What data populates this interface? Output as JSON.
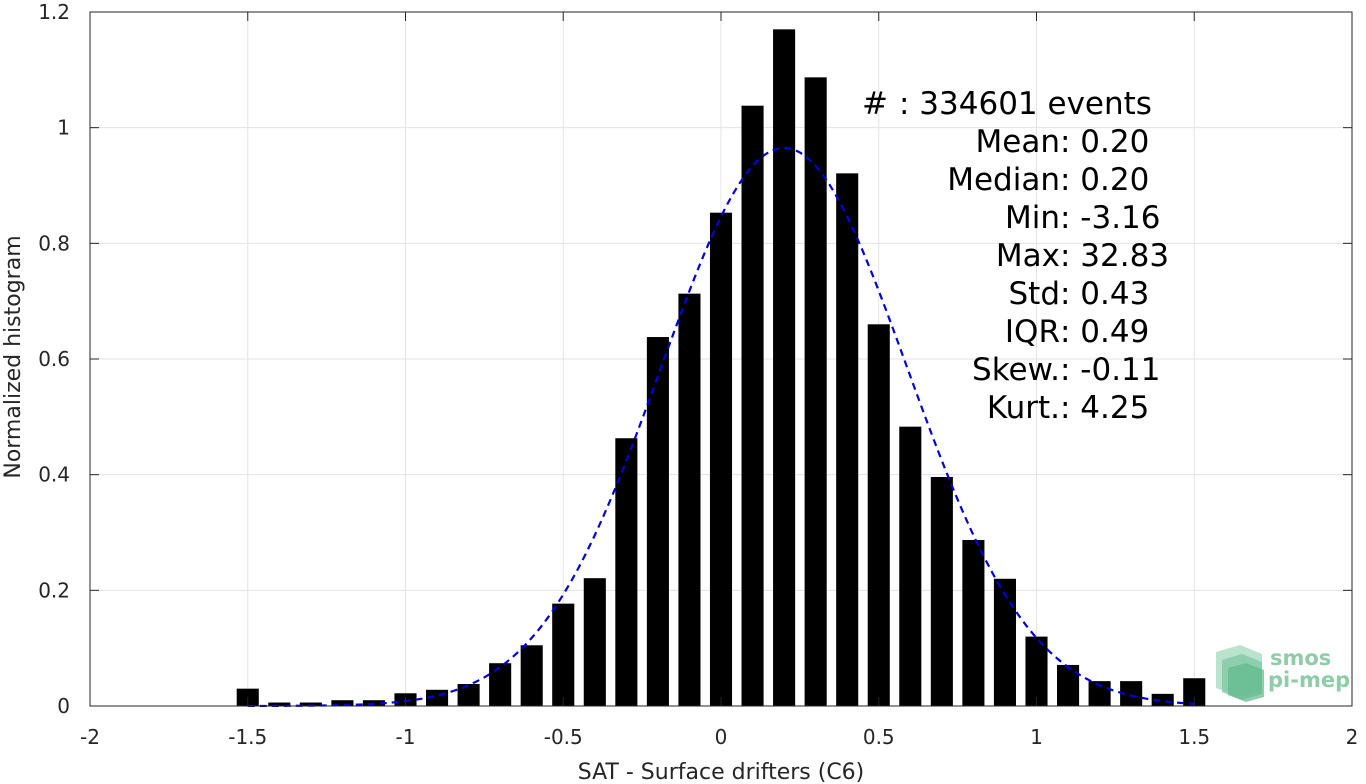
{
  "chart_data": {
    "type": "bar",
    "xlabel": "SAT - Surface drifters (C6)",
    "ylabel": "Normalized histogram",
    "xlim": [
      -2,
      2
    ],
    "ylim": [
      0,
      1.2
    ],
    "xticks": [
      -2,
      -1.5,
      -1,
      -0.5,
      0,
      0.5,
      1,
      1.5,
      2
    ],
    "xtick_labels": [
      "-2",
      "-1.5",
      "-1",
      "-0.5",
      "0",
      "0.5",
      "1",
      "1.5",
      "2"
    ],
    "yticks": [
      0,
      0.2,
      0.4,
      0.6,
      0.8,
      1,
      1.2
    ],
    "ytick_labels": [
      "0",
      "0.2",
      "0.4",
      "0.6",
      "0.8",
      "1",
      "1.2"
    ],
    "grid": true,
    "bar_width": 0.07,
    "bar_color": "#000000",
    "fit_color": "#0000dd",
    "bars": [
      {
        "x": -1.5,
        "y": 0.03
      },
      {
        "x": -1.4,
        "y": 0.006
      },
      {
        "x": -1.3,
        "y": 0.006
      },
      {
        "x": -1.2,
        "y": 0.01
      },
      {
        "x": -1.1,
        "y": 0.01
      },
      {
        "x": -1.0,
        "y": 0.022
      },
      {
        "x": -0.9,
        "y": 0.028
      },
      {
        "x": -0.8,
        "y": 0.038
      },
      {
        "x": -0.7,
        "y": 0.074
      },
      {
        "x": -0.6,
        "y": 0.105
      },
      {
        "x": -0.5,
        "y": 0.177
      },
      {
        "x": -0.4,
        "y": 0.221
      },
      {
        "x": -0.3,
        "y": 0.463
      },
      {
        "x": -0.2,
        "y": 0.638
      },
      {
        "x": -0.1,
        "y": 0.713
      },
      {
        "x": 0.0,
        "y": 0.853
      },
      {
        "x": 0.1,
        "y": 1.038
      },
      {
        "x": 0.2,
        "y": 1.17
      },
      {
        "x": 0.3,
        "y": 1.087
      },
      {
        "x": 0.4,
        "y": 0.921
      },
      {
        "x": 0.5,
        "y": 0.66
      },
      {
        "x": 0.6,
        "y": 0.483
      },
      {
        "x": 0.7,
        "y": 0.396
      },
      {
        "x": 0.8,
        "y": 0.287
      },
      {
        "x": 0.9,
        "y": 0.22
      },
      {
        "x": 1.0,
        "y": 0.12
      },
      {
        "x": 1.1,
        "y": 0.071
      },
      {
        "x": 1.2,
        "y": 0.043
      },
      {
        "x": 1.3,
        "y": 0.043
      },
      {
        "x": 1.4,
        "y": 0.021
      },
      {
        "x": 1.5,
        "y": 0.048
      }
    ],
    "fit": {
      "type": "gaussian",
      "mean": 0.2,
      "sigma": 0.39,
      "peak": 0.965,
      "x_range": [
        -1.5,
        1.5
      ]
    },
    "stats": [
      {
        "label": "#",
        "sep": " : ",
        "value": "334601 events"
      },
      {
        "label": "Mean",
        "sep": " : ",
        "value": "0.20"
      },
      {
        "label": "Median",
        "sep": " : ",
        "value": "0.20"
      },
      {
        "label": "Min",
        "sep": " : ",
        "value": "-3.16"
      },
      {
        "label": "Max",
        "sep": " : ",
        "value": "32.83"
      },
      {
        "label": "Std",
        "sep": " : ",
        "value": "0.43"
      },
      {
        "label": "IQR",
        "sep": " : ",
        "value": "0.49"
      },
      {
        "label": "Skew.",
        "sep": " : ",
        "value": "-0.11"
      },
      {
        "label": "Kurt.",
        "sep": " : ",
        "value": "4.25"
      }
    ]
  },
  "logo": {
    "line1": "smos",
    "line2": "pi-mep"
  }
}
